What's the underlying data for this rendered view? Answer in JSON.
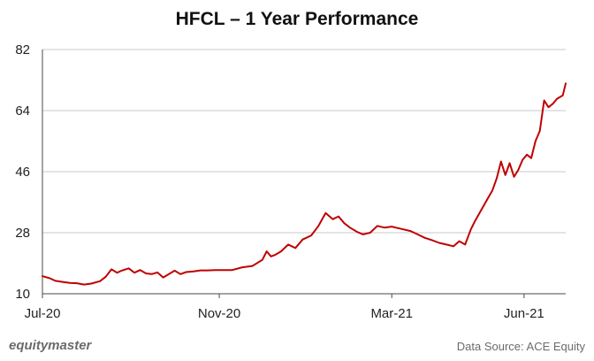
{
  "chart_data": {
    "type": "line",
    "title": "HFCL – 1 Year Performance",
    "xlabel": "",
    "ylabel": "",
    "ylim": [
      10,
      82
    ],
    "yticks": [
      10,
      28,
      46,
      64,
      82
    ],
    "xtick_labels": [
      "Jul-20",
      "Nov-20",
      "Mar-21",
      "Jun-21"
    ],
    "xtick_dates": [
      "2020-07-01",
      "2020-11-01",
      "2021-03-01",
      "2021-06-01"
    ],
    "grid": "horizontal",
    "line_color": "#c00000",
    "series": [
      {
        "name": "",
        "x": [
          "2020-07-01",
          "2020-07-06",
          "2020-07-10",
          "2020-07-15",
          "2020-07-20",
          "2020-07-25",
          "2020-07-30",
          "2020-08-04",
          "2020-08-10",
          "2020-08-14",
          "2020-08-18",
          "2020-08-22",
          "2020-08-25",
          "2020-08-30",
          "2020-09-03",
          "2020-09-07",
          "2020-09-11",
          "2020-09-15",
          "2020-09-19",
          "2020-09-23",
          "2020-09-27",
          "2020-10-01",
          "2020-10-05",
          "2020-10-09",
          "2020-10-14",
          "2020-10-19",
          "2020-10-24",
          "2020-10-29",
          "2020-11-04",
          "2020-11-10",
          "2020-11-17",
          "2020-11-24",
          "2020-12-01",
          "2020-12-04",
          "2020-12-07",
          "2020-12-10",
          "2020-12-14",
          "2020-12-19",
          "2020-12-24",
          "2020-12-29",
          "2021-01-04",
          "2021-01-09",
          "2021-01-14",
          "2021-01-19",
          "2021-01-23",
          "2021-01-27",
          "2021-01-31",
          "2021-02-05",
          "2021-02-09",
          "2021-02-14",
          "2021-02-19",
          "2021-02-24",
          "2021-03-01",
          "2021-03-04",
          "2021-03-09",
          "2021-03-14",
          "2021-03-19",
          "2021-03-24",
          "2021-03-29",
          "2021-04-03",
          "2021-04-08",
          "2021-04-13",
          "2021-04-17",
          "2021-04-21",
          "2021-04-25",
          "2021-04-28",
          "2021-05-02",
          "2021-05-06",
          "2021-05-10",
          "2021-05-13",
          "2021-05-16",
          "2021-05-19",
          "2021-05-22",
          "2021-05-25",
          "2021-05-28",
          "2021-05-31",
          "2021-06-03",
          "2021-06-06",
          "2021-06-09",
          "2021-06-12",
          "2021-06-15",
          "2021-06-18",
          "2021-06-21",
          "2021-06-24",
          "2021-06-28",
          "2021-06-30"
        ],
        "values": [
          15.2,
          14.6,
          13.8,
          13.5,
          13.2,
          13.1,
          12.7,
          13.0,
          13.7,
          15.0,
          17.2,
          16.2,
          16.8,
          17.5,
          16.2,
          17.0,
          16.0,
          15.8,
          16.3,
          14.8,
          15.8,
          16.8,
          15.8,
          16.4,
          16.6,
          16.9,
          16.9,
          17.0,
          17.0,
          17.0,
          17.8,
          18.2,
          20.0,
          22.5,
          21.0,
          21.5,
          22.5,
          24.5,
          23.5,
          26.0,
          27.2,
          30.0,
          33.8,
          32.0,
          32.8,
          30.8,
          29.5,
          28.2,
          27.5,
          28.0,
          30.0,
          29.5,
          29.8,
          29.5,
          29.0,
          28.5,
          27.5,
          26.5,
          25.8,
          25.0,
          24.5,
          24.0,
          25.5,
          24.5,
          29.0,
          31.5,
          34.5,
          37.5,
          40.5,
          44.0,
          49.0,
          45.0,
          48.5,
          44.5,
          46.5,
          49.5,
          51.0,
          50.0,
          55.0,
          58.0,
          67.0,
          65.0,
          66.0,
          67.5,
          68.5,
          72.0
        ]
      }
    ]
  },
  "footer": {
    "brand": "equitymaster",
    "source": "Data Source: ACE Equity"
  }
}
